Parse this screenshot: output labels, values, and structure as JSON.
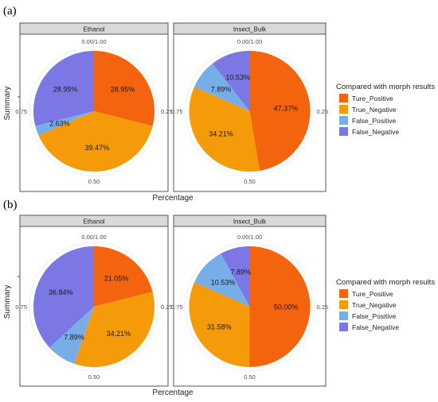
{
  "figures": [
    {
      "label": "(a)",
      "ylabel": "Summary",
      "xlabel": "Percentage",
      "legend_title": "Compared with morph results",
      "legend_placement": "right"
    },
    {
      "label": "(b)",
      "ylabel": "Summary",
      "xlabel": "Percentage",
      "legend_title": "Compared with morph results",
      "legend_placement": "right"
    }
  ],
  "legend": {
    "items": [
      "Ture_Positive",
      "True_Negative",
      "False_Positive",
      "False_Negative"
    ]
  },
  "colors": {
    "Ture_Positive": "#f4640f",
    "True_Negative": "#f59b0a",
    "False_Positive": "#78aee8",
    "False_Negative": "#7b78e6",
    "strip_bg": "#d9d9d9",
    "strip_border": "#555555",
    "grid": "#ebebeb"
  },
  "polar_ticks": [
    "0.00/1.00",
    "0.25",
    "0.50",
    "0.75"
  ],
  "chart_data": [
    {
      "type": "pie",
      "figure": "(a)",
      "facet": "Ethanol",
      "categories": [
        "Ture_Positive",
        "True_Negative",
        "False_Positive",
        "False_Negative"
      ],
      "values": [
        28.95,
        39.47,
        2.63,
        28.95
      ],
      "labels": [
        "28.95%",
        "39.47%",
        "2.63%",
        "28.95%"
      ]
    },
    {
      "type": "pie",
      "figure": "(a)",
      "facet": "Insect_Bulk",
      "categories": [
        "Ture_Positive",
        "True_Negative",
        "False_Positive",
        "False_Negative"
      ],
      "values": [
        47.37,
        34.21,
        7.89,
        10.53
      ],
      "labels": [
        "47.37%",
        "34.21%",
        "7.89%",
        "10.53%"
      ]
    },
    {
      "type": "pie",
      "figure": "(b)",
      "facet": "Ethanol",
      "categories": [
        "Ture_Positive",
        "True_Negative",
        "False_Positive",
        "False_Negative"
      ],
      "values": [
        21.05,
        34.21,
        7.89,
        36.84
      ],
      "labels": [
        "21.05%",
        "34.21%",
        "7.89%",
        "36.84%"
      ]
    },
    {
      "type": "pie",
      "figure": "(b)",
      "facet": "Insect_Bulk",
      "categories": [
        "Ture_Positive",
        "True_Negative",
        "False_Positive",
        "False_Negative"
      ],
      "values": [
        50.0,
        31.58,
        10.53,
        7.89
      ],
      "labels": [
        "50.00%",
        "31.58%",
        "10.53%",
        "7.89%"
      ]
    }
  ]
}
